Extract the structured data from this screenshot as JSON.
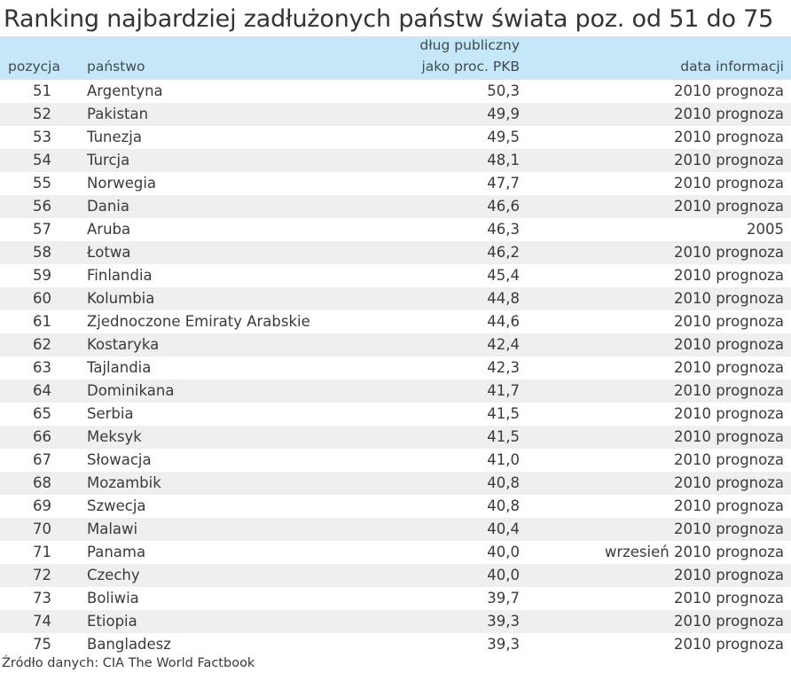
{
  "title": "Ranking najbardziej zadłużonych państw świata poz. od 51 do 75",
  "table": {
    "headers": {
      "position": "pozycja",
      "country": "państwo",
      "debt_line1": "dług publiczny",
      "debt_line2": "jako proc. PKB",
      "date": "data informacji"
    },
    "rows": [
      {
        "position": "51",
        "country": "Argentyna",
        "debt": "50,3",
        "date": "2010 prognoza"
      },
      {
        "position": "52",
        "country": "Pakistan",
        "debt": "49,9",
        "date": "2010 prognoza"
      },
      {
        "position": "53",
        "country": "Tunezja",
        "debt": "49,5",
        "date": "2010 prognoza"
      },
      {
        "position": "54",
        "country": "Turcja",
        "debt": "48,1",
        "date": "2010 prognoza"
      },
      {
        "position": "55",
        "country": "Norwegia",
        "debt": "47,7",
        "date": "2010 prognoza"
      },
      {
        "position": "56",
        "country": "Dania",
        "debt": "46,6",
        "date": "2010 prognoza"
      },
      {
        "position": "57",
        "country": "Aruba",
        "debt": "46,3",
        "date": "2005"
      },
      {
        "position": "58",
        "country": "Łotwa",
        "debt": "46,2",
        "date": "2010 prognoza"
      },
      {
        "position": "59",
        "country": "Finlandia",
        "debt": "45,4",
        "date": "2010 prognoza"
      },
      {
        "position": "60",
        "country": "Kolumbia",
        "debt": "44,8",
        "date": "2010 prognoza"
      },
      {
        "position": "61",
        "country": "Zjednoczone Emiraty Arabskie",
        "debt": "44,6",
        "date": "2010 prognoza"
      },
      {
        "position": "62",
        "country": "Kostaryka",
        "debt": "42,4",
        "date": "2010 prognoza"
      },
      {
        "position": "63",
        "country": "Tajlandia",
        "debt": "42,3",
        "date": "2010 prognoza"
      },
      {
        "position": "64",
        "country": "Dominikana",
        "debt": "41,7",
        "date": "2010 prognoza"
      },
      {
        "position": "65",
        "country": "Serbia",
        "debt": "41,5",
        "date": "2010 prognoza"
      },
      {
        "position": "66",
        "country": "Meksyk",
        "debt": "41,5",
        "date": "2010 prognoza"
      },
      {
        "position": "67",
        "country": "Słowacja",
        "debt": "41,0",
        "date": "2010 prognoza"
      },
      {
        "position": "68",
        "country": "Mozambik",
        "debt": "40,8",
        "date": "2010 prognoza"
      },
      {
        "position": "69",
        "country": "Szwecja",
        "debt": "40,8",
        "date": "2010 prognoza"
      },
      {
        "position": "70",
        "country": "Malawi",
        "debt": "40,4",
        "date": "2010 prognoza"
      },
      {
        "position": "71",
        "country": "Panama",
        "debt": "40,0",
        "date": "wrzesień 2010 prognoza"
      },
      {
        "position": "72",
        "country": "Czechy",
        "debt": "40,0",
        "date": "2010 prognoza"
      },
      {
        "position": "73",
        "country": "Boliwia",
        "debt": "39,7",
        "date": "2010 prognoza"
      },
      {
        "position": "74",
        "country": "Etiopia",
        "debt": "39,3",
        "date": "2010 prognoza"
      },
      {
        "position": "75",
        "country": "Bangladesz",
        "debt": "39,3",
        "date": "2010 prognoza"
      }
    ]
  },
  "source": "Źródło danych: CIA The World Factbook",
  "colors": {
    "header_bg": "#c6e7f7",
    "row_alt_bg": "#efefef",
    "row_bg": "#ffffff",
    "text": "#3a3a3a"
  },
  "chart_data": {
    "type": "table",
    "title": "Ranking najbardziej zadłużonych państw świata poz. od 51 do 75",
    "columns": [
      "pozycja",
      "państwo",
      "dług publiczny jako proc. PKB",
      "data informacji"
    ],
    "categories": [
      "Argentyna",
      "Pakistan",
      "Tunezja",
      "Turcja",
      "Norwegia",
      "Dania",
      "Aruba",
      "Łotwa",
      "Finlandia",
      "Kolumbia",
      "Zjednoczone Emiraty Arabskie",
      "Kostaryka",
      "Tajlandia",
      "Dominikana",
      "Serbia",
      "Meksyk",
      "Słowacja",
      "Mozambik",
      "Szwecja",
      "Malawi",
      "Panama",
      "Czechy",
      "Boliwia",
      "Etiopia",
      "Bangladesz"
    ],
    "positions": [
      51,
      52,
      53,
      54,
      55,
      56,
      57,
      58,
      59,
      60,
      61,
      62,
      63,
      64,
      65,
      66,
      67,
      68,
      69,
      70,
      71,
      72,
      73,
      74,
      75
    ],
    "values": [
      50.3,
      49.9,
      49.5,
      48.1,
      47.7,
      46.6,
      46.3,
      46.2,
      45.4,
      44.8,
      44.6,
      42.4,
      42.3,
      41.7,
      41.5,
      41.5,
      41.0,
      40.8,
      40.8,
      40.4,
      40.0,
      40.0,
      39.7,
      39.3,
      39.3
    ],
    "dates": [
      "2010 prognoza",
      "2010 prognoza",
      "2010 prognoza",
      "2010 prognoza",
      "2010 prognoza",
      "2010 prognoza",
      "2005",
      "2010 prognoza",
      "2010 prognoza",
      "2010 prognoza",
      "2010 prognoza",
      "2010 prognoza",
      "2010 prognoza",
      "2010 prognoza",
      "2010 prognoza",
      "2010 prognoza",
      "2010 prognoza",
      "2010 prognoza",
      "2010 prognoza",
      "2010 prognoza",
      "wrzesień 2010 prognoza",
      "2010 prognoza",
      "2010 prognoza",
      "2010 prognoza",
      "2010 prognoza"
    ],
    "source": "Źródło danych: CIA The World Factbook"
  }
}
